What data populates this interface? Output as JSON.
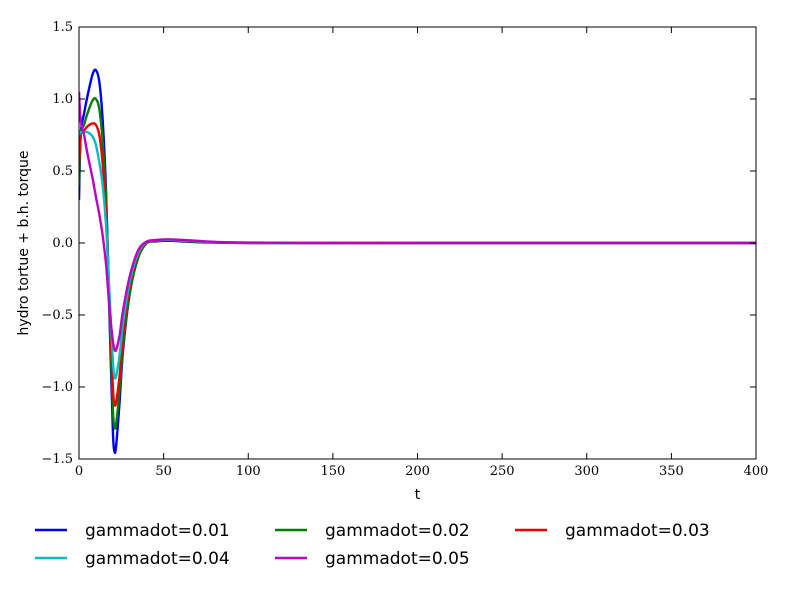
{
  "chart_data": {
    "type": "line",
    "title": "",
    "xlabel": "t",
    "ylabel": "hydro tortue + b.h. torque",
    "xlim": [
      0,
      400
    ],
    "ylim": [
      -1.5,
      1.5
    ],
    "xticks": [
      0,
      50,
      100,
      150,
      200,
      250,
      300,
      350,
      400
    ],
    "yticks": [
      -1.5,
      -1.0,
      -0.5,
      0.0,
      0.5,
      1.0,
      1.5
    ],
    "xtick_labels": [
      "0",
      "50",
      "100",
      "150",
      "200",
      "250",
      "300",
      "350",
      "400"
    ],
    "ytick_labels": [
      "−1.5",
      "−1.0",
      "−0.5",
      "0.0",
      "0.5",
      "1.0",
      "1.5"
    ],
    "grid": false,
    "legend_position": "below plot, 3 columns",
    "series": [
      {
        "name": "gammadot=0.01",
        "color": "#0000ee",
        "x": [
          0,
          1,
          3,
          5,
          8,
          10,
          12,
          14,
          16,
          18,
          20,
          21,
          22,
          24,
          26,
          30,
          35,
          40,
          45,
          50,
          55,
          60,
          70,
          80,
          100,
          150,
          200,
          400
        ],
        "y": [
          0.3,
          0.75,
          0.9,
          1.02,
          1.17,
          1.2,
          1.12,
          0.85,
          0.35,
          -0.5,
          -1.3,
          -1.45,
          -1.4,
          -1.1,
          -0.75,
          -0.35,
          -0.1,
          0.0,
          0.01,
          0.015,
          0.015,
          0.012,
          0.006,
          0.003,
          0.0,
          0.0,
          0.0,
          0.0
        ]
      },
      {
        "name": "gammadot=0.02",
        "color": "#007f00",
        "x": [
          0,
          1,
          3,
          5,
          8,
          10,
          12,
          14,
          16,
          18,
          20,
          21,
          22,
          24,
          26,
          30,
          35,
          40,
          45,
          50,
          55,
          60,
          70,
          80,
          100,
          150,
          200,
          400
        ],
        "y": [
          0.4,
          0.75,
          0.82,
          0.9,
          0.99,
          1.0,
          0.93,
          0.7,
          0.3,
          -0.45,
          -1.15,
          -1.28,
          -1.25,
          -1.02,
          -0.72,
          -0.34,
          -0.1,
          0.0,
          0.012,
          0.017,
          0.017,
          0.014,
          0.008,
          0.004,
          0.001,
          0.0,
          0.0,
          0.0
        ]
      },
      {
        "name": "gammadot=0.03",
        "color": "#ee0000",
        "x": [
          0,
          1,
          3,
          5,
          8,
          10,
          12,
          14,
          16,
          18,
          20,
          21,
          22,
          24,
          26,
          30,
          35,
          40,
          45,
          50,
          55,
          60,
          70,
          80,
          100,
          150,
          200,
          400
        ],
        "y": [
          0.55,
          0.75,
          0.78,
          0.81,
          0.83,
          0.82,
          0.75,
          0.55,
          0.2,
          -0.4,
          -1.0,
          -1.12,
          -1.1,
          -0.92,
          -0.65,
          -0.3,
          -0.08,
          0.005,
          0.015,
          0.02,
          0.02,
          0.017,
          0.01,
          0.005,
          0.002,
          0.0,
          0.0,
          0.0
        ]
      },
      {
        "name": "gammadot=0.04",
        "color": "#00bfbf",
        "x": [
          0,
          1,
          3,
          5,
          8,
          10,
          12,
          14,
          16,
          18,
          20,
          21,
          22,
          24,
          26,
          30,
          35,
          40,
          45,
          50,
          55,
          60,
          70,
          80,
          100,
          150,
          200,
          400
        ],
        "y": [
          0.75,
          0.77,
          0.77,
          0.77,
          0.74,
          0.68,
          0.56,
          0.4,
          0.12,
          -0.35,
          -0.82,
          -0.93,
          -0.92,
          -0.78,
          -0.56,
          -0.27,
          -0.07,
          0.008,
          0.018,
          0.022,
          0.022,
          0.019,
          0.012,
          0.006,
          0.002,
          0.0,
          0.0,
          0.0
        ]
      },
      {
        "name": "gammadot=0.05",
        "color": "#bf00bf",
        "x": [
          0,
          1,
          3,
          5,
          8,
          10,
          12,
          14,
          16,
          18,
          20,
          21,
          22,
          24,
          26,
          30,
          35,
          40,
          45,
          50,
          55,
          60,
          70,
          80,
          100,
          150,
          200,
          400
        ],
        "y": [
          1.05,
          0.85,
          0.75,
          0.62,
          0.45,
          0.32,
          0.2,
          0.05,
          -0.15,
          -0.45,
          -0.68,
          -0.74,
          -0.74,
          -0.64,
          -0.47,
          -0.23,
          -0.05,
          0.01,
          0.02,
          0.025,
          0.025,
          0.022,
          0.015,
          0.008,
          0.003,
          0.0,
          0.0,
          0.0
        ]
      }
    ]
  }
}
